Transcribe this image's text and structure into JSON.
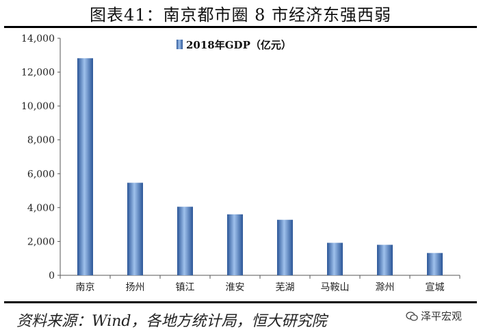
{
  "title": "图表41：南京都市圈 8 市经济东强西弱",
  "source": "资料来源：Wind，各地方统计局，恒大研究院",
  "watermark": "泽平宏观",
  "watermark_icon": "wechat-icon",
  "colors": {
    "bar": "#3f78c4",
    "bar_dark": "#2a5597",
    "bar_light": "#9fc1ec"
  },
  "chart_data": {
    "type": "bar",
    "categories": [
      "南京",
      "扬州",
      "镇江",
      "淮安",
      "芜湖",
      "马鞍山",
      "滁州",
      "宣城"
    ],
    "series": [
      {
        "name": "2018年GDP（亿元）",
        "values": [
          12820,
          5466,
          4050,
          3601,
          3279,
          1919,
          1801,
          1317
        ]
      }
    ],
    "yticks": [
      "0",
      "2,000",
      "4,000",
      "6,000",
      "8,000",
      "10,000",
      "12,000",
      "14,000"
    ],
    "ylim": [
      0,
      14000
    ],
    "legend": "top-center",
    "grid": false
  }
}
